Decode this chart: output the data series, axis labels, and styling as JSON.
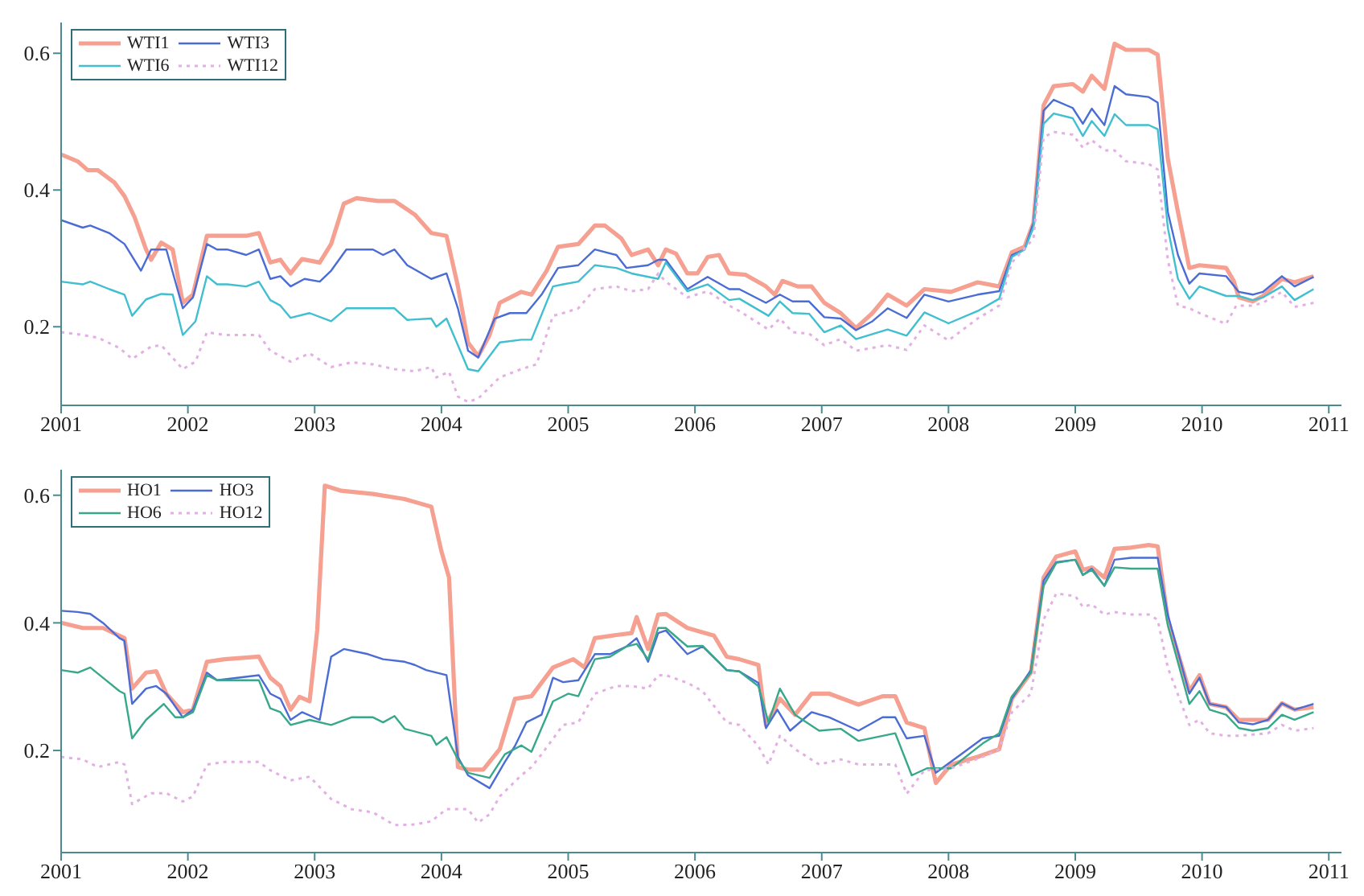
{
  "chart_data": [
    {
      "type": "line",
      "xlim": [
        2001,
        2011.1
      ],
      "xticks": [
        2001,
        2002,
        2003,
        2004,
        2005,
        2006,
        2007,
        2008,
        2009,
        2010,
        2011
      ],
      "ylim": [
        0.085,
        0.645
      ],
      "yticks": [
        0.2,
        0.4,
        0.6
      ],
      "legend": "top left",
      "marker": "none",
      "series": [
        {
          "name": "WTI1",
          "color": "#f5a090",
          "line_style": "solid",
          "x": [
            2001.0,
            2001.13,
            2001.21,
            2001.29,
            2001.42,
            2001.5,
            2001.58,
            2001.67,
            2001.71,
            2001.79,
            2001.88,
            2001.96,
            2002.04,
            2002.15,
            2002.25,
            2002.46,
            2002.56,
            2002.65,
            2002.73,
            2002.81,
            2002.9,
            2003.04,
            2003.13,
            2003.23,
            2003.33,
            2003.5,
            2003.63,
            2003.79,
            2003.92,
            2004.04,
            2004.13,
            2004.21,
            2004.29,
            2004.38,
            2004.46,
            2004.63,
            2004.71,
            2004.83,
            2004.92,
            2005.08,
            2005.21,
            2005.29,
            2005.42,
            2005.5,
            2005.63,
            2005.71,
            2005.77,
            2005.85,
            2005.94,
            2006.02,
            2006.1,
            2006.19,
            2006.27,
            2006.4,
            2006.56,
            2006.63,
            2006.69,
            2006.81,
            2006.92,
            2007.02,
            2007.15,
            2007.27,
            2007.4,
            2007.52,
            2007.67,
            2007.81,
            2008.02,
            2008.23,
            2008.4,
            2008.5,
            2008.6,
            2008.67,
            2008.75,
            2008.83,
            2008.98,
            2009.06,
            2009.13,
            2009.23,
            2009.31,
            2009.4,
            2009.58,
            2009.65,
            2009.73,
            2009.81,
            2009.9,
            2009.98,
            2010.19,
            2010.25,
            2010.29,
            2010.4,
            2010.48,
            2010.63,
            2010.73,
            2010.88
          ],
          "values": [
            0.452,
            0.442,
            0.429,
            0.429,
            0.411,
            0.391,
            0.36,
            0.313,
            0.298,
            0.323,
            0.313,
            0.235,
            0.247,
            0.333,
            0.333,
            0.333,
            0.337,
            0.294,
            0.298,
            0.278,
            0.299,
            0.294,
            0.321,
            0.38,
            0.388,
            0.384,
            0.384,
            0.364,
            0.337,
            0.333,
            0.259,
            0.177,
            0.157,
            0.188,
            0.235,
            0.251,
            0.247,
            0.282,
            0.317,
            0.321,
            0.348,
            0.348,
            0.329,
            0.305,
            0.313,
            0.29,
            0.313,
            0.307,
            0.278,
            0.278,
            0.302,
            0.305,
            0.278,
            0.276,
            0.259,
            0.247,
            0.267,
            0.259,
            0.259,
            0.235,
            0.22,
            0.198,
            0.22,
            0.247,
            0.231,
            0.255,
            0.251,
            0.265,
            0.259,
            0.309,
            0.317,
            0.352,
            0.524,
            0.552,
            0.555,
            0.544,
            0.567,
            0.548,
            0.614,
            0.605,
            0.605,
            0.598,
            0.446,
            0.368,
            0.286,
            0.29,
            0.286,
            0.267,
            0.243,
            0.237,
            0.245,
            0.27,
            0.265,
            0.274
          ]
        },
        {
          "name": "WTI3",
          "color": "#4a6cd4",
          "line_style": "solid",
          "x": [
            2001.0,
            2001.17,
            2001.23,
            2001.38,
            2001.5,
            2001.63,
            2001.71,
            2001.83,
            2001.96,
            2002.04,
            2002.15,
            2002.23,
            2002.31,
            2002.46,
            2002.56,
            2002.65,
            2002.73,
            2002.81,
            2002.92,
            2003.04,
            2003.13,
            2003.25,
            2003.46,
            2003.54,
            2003.63,
            2003.73,
            2003.92,
            2004.04,
            2004.13,
            2004.21,
            2004.29,
            2004.42,
            2004.54,
            2004.67,
            2004.79,
            2004.92,
            2005.08,
            2005.21,
            2005.38,
            2005.46,
            2005.63,
            2005.71,
            2005.77,
            2005.94,
            2006.1,
            2006.27,
            2006.35,
            2006.56,
            2006.67,
            2006.77,
            2006.9,
            2007.02,
            2007.15,
            2007.27,
            2007.4,
            2007.52,
            2007.67,
            2007.81,
            2008.0,
            2008.23,
            2008.4,
            2008.5,
            2008.6,
            2008.67,
            2008.75,
            2008.83,
            2008.98,
            2009.06,
            2009.13,
            2009.23,
            2009.31,
            2009.4,
            2009.58,
            2009.65,
            2009.73,
            2009.81,
            2009.9,
            2009.98,
            2010.19,
            2010.29,
            2010.4,
            2010.48,
            2010.63,
            2010.73,
            2010.88
          ],
          "values": [
            0.356,
            0.345,
            0.348,
            0.337,
            0.321,
            0.282,
            0.313,
            0.313,
            0.227,
            0.243,
            0.321,
            0.313,
            0.313,
            0.305,
            0.313,
            0.27,
            0.274,
            0.259,
            0.27,
            0.266,
            0.282,
            0.313,
            0.313,
            0.305,
            0.313,
            0.29,
            0.27,
            0.278,
            0.227,
            0.165,
            0.155,
            0.212,
            0.22,
            0.22,
            0.247,
            0.286,
            0.29,
            0.313,
            0.305,
            0.286,
            0.29,
            0.298,
            0.298,
            0.255,
            0.273,
            0.255,
            0.255,
            0.235,
            0.247,
            0.237,
            0.237,
            0.214,
            0.212,
            0.195,
            0.208,
            0.227,
            0.213,
            0.247,
            0.237,
            0.247,
            0.252,
            0.305,
            0.313,
            0.352,
            0.516,
            0.532,
            0.52,
            0.497,
            0.519,
            0.495,
            0.552,
            0.54,
            0.536,
            0.528,
            0.368,
            0.305,
            0.263,
            0.278,
            0.274,
            0.251,
            0.247,
            0.251,
            0.274,
            0.259,
            0.273
          ]
        },
        {
          "name": "WTI6",
          "color": "#40bfd0",
          "line_style": "solid",
          "x": [
            2001.0,
            2001.17,
            2001.23,
            2001.38,
            2001.5,
            2001.56,
            2001.67,
            2001.79,
            2001.88,
            2001.96,
            2002.06,
            2002.15,
            2002.23,
            2002.31,
            2002.46,
            2002.56,
            2002.65,
            2002.73,
            2002.81,
            2002.96,
            2003.13,
            2003.25,
            2003.5,
            2003.63,
            2003.73,
            2003.92,
            2003.96,
            2004.04,
            2004.13,
            2004.21,
            2004.29,
            2004.46,
            2004.63,
            2004.71,
            2004.88,
            2004.96,
            2005.08,
            2005.21,
            2005.38,
            2005.5,
            2005.71,
            2005.77,
            2005.94,
            2006.1,
            2006.27,
            2006.35,
            2006.58,
            2006.67,
            2006.77,
            2006.9,
            2007.02,
            2007.15,
            2007.27,
            2007.52,
            2007.67,
            2007.81,
            2008.0,
            2008.23,
            2008.4,
            2008.5,
            2008.6,
            2008.67,
            2008.75,
            2008.83,
            2008.98,
            2009.06,
            2009.13,
            2009.23,
            2009.31,
            2009.4,
            2009.58,
            2009.65,
            2009.73,
            2009.81,
            2009.9,
            2009.98,
            2010.19,
            2010.29,
            2010.4,
            2010.48,
            2010.63,
            2010.73,
            2010.88
          ],
          "values": [
            0.266,
            0.262,
            0.266,
            0.255,
            0.247,
            0.216,
            0.24,
            0.248,
            0.247,
            0.188,
            0.208,
            0.274,
            0.262,
            0.262,
            0.259,
            0.266,
            0.239,
            0.231,
            0.213,
            0.22,
            0.208,
            0.227,
            0.227,
            0.227,
            0.21,
            0.212,
            0.2,
            0.212,
            0.173,
            0.138,
            0.135,
            0.177,
            0.181,
            0.181,
            0.259,
            0.262,
            0.266,
            0.29,
            0.286,
            0.278,
            0.27,
            0.294,
            0.252,
            0.262,
            0.239,
            0.241,
            0.216,
            0.237,
            0.22,
            0.219,
            0.192,
            0.202,
            0.182,
            0.196,
            0.187,
            0.221,
            0.205,
            0.223,
            0.241,
            0.302,
            0.313,
            0.345,
            0.497,
            0.512,
            0.505,
            0.479,
            0.501,
            0.479,
            0.511,
            0.495,
            0.495,
            0.489,
            0.345,
            0.27,
            0.241,
            0.259,
            0.245,
            0.245,
            0.239,
            0.243,
            0.259,
            0.239,
            0.255
          ]
        },
        {
          "name": "WTI12",
          "color": "#e2b0e2",
          "line_style": "dotted",
          "x": [
            2001.0,
            2001.17,
            2001.29,
            2001.46,
            2001.56,
            2001.71,
            2001.79,
            2001.96,
            2002.06,
            2002.15,
            2002.29,
            2002.56,
            2002.65,
            2002.81,
            2002.96,
            2003.13,
            2003.29,
            2003.46,
            2003.63,
            2003.79,
            2003.92,
            2003.96,
            2004.06,
            2004.13,
            2004.21,
            2004.29,
            2004.46,
            2004.63,
            2004.75,
            2004.88,
            2004.96,
            2005.08,
            2005.21,
            2005.38,
            2005.5,
            2005.63,
            2005.71,
            2005.77,
            2005.94,
            2006.1,
            2006.27,
            2006.35,
            2006.58,
            2006.67,
            2006.77,
            2006.9,
            2007.02,
            2007.15,
            2007.27,
            2007.52,
            2007.67,
            2007.81,
            2008.0,
            2008.23,
            2008.4,
            2008.5,
            2008.67,
            2008.75,
            2008.83,
            2008.98,
            2009.06,
            2009.13,
            2009.23,
            2009.31,
            2009.4,
            2009.58,
            2009.65,
            2009.73,
            2009.81,
            2009.9,
            2009.98,
            2010.19,
            2010.27,
            2010.4,
            2010.48,
            2010.63,
            2010.73,
            2010.88
          ],
          "values": [
            0.192,
            0.188,
            0.184,
            0.169,
            0.153,
            0.171,
            0.173,
            0.138,
            0.149,
            0.192,
            0.188,
            0.188,
            0.165,
            0.149,
            0.161,
            0.141,
            0.148,
            0.145,
            0.138,
            0.135,
            0.141,
            0.126,
            0.134,
            0.098,
            0.09,
            0.095,
            0.126,
            0.138,
            0.145,
            0.216,
            0.22,
            0.227,
            0.255,
            0.259,
            0.252,
            0.255,
            0.278,
            0.266,
            0.243,
            0.252,
            0.231,
            0.223,
            0.196,
            0.212,
            0.192,
            0.19,
            0.173,
            0.182,
            0.165,
            0.173,
            0.166,
            0.202,
            0.18,
            0.212,
            0.231,
            0.294,
            0.329,
            0.477,
            0.485,
            0.481,
            0.462,
            0.473,
            0.458,
            0.458,
            0.442,
            0.438,
            0.43,
            0.298,
            0.231,
            0.227,
            0.22,
            0.204,
            0.231,
            0.231,
            0.235,
            0.251,
            0.229,
            0.235
          ]
        }
      ]
    },
    {
      "type": "line",
      "xlim": [
        2001,
        2011.1
      ],
      "xticks": [
        2001,
        2002,
        2003,
        2004,
        2005,
        2006,
        2007,
        2008,
        2009,
        2010,
        2011
      ],
      "ylim": [
        0.04,
        0.64
      ],
      "yticks": [
        0.2,
        0.4,
        0.6
      ],
      "legend": "top left",
      "marker": "none",
      "series": [
        {
          "name": "HO1",
          "color": "#f5a090",
          "line_style": "solid",
          "x": [
            2001.0,
            2001.17,
            2001.33,
            2001.5,
            2001.56,
            2001.67,
            2001.75,
            2001.83,
            2001.96,
            2002.04,
            2002.15,
            2002.29,
            2002.56,
            2002.65,
            2002.73,
            2002.81,
            2002.88,
            2002.96,
            2003.02,
            2003.08,
            2003.21,
            2003.46,
            2003.71,
            2003.92,
            2004.0,
            2004.06,
            2004.13,
            2004.21,
            2004.33,
            2004.46,
            2004.58,
            2004.71,
            2004.88,
            2005.04,
            2005.13,
            2005.21,
            2005.38,
            2005.5,
            2005.54,
            2005.63,
            2005.71,
            2005.77,
            2005.94,
            2006.15,
            2006.25,
            2006.35,
            2006.5,
            2006.56,
            2006.67,
            2006.79,
            2006.92,
            2007.06,
            2007.29,
            2007.48,
            2007.58,
            2007.67,
            2007.81,
            2007.9,
            2008.02,
            2008.23,
            2008.4,
            2008.5,
            2008.65,
            2008.75,
            2008.85,
            2009.0,
            2009.06,
            2009.13,
            2009.23,
            2009.31,
            2009.44,
            2009.58,
            2009.65,
            2009.73,
            2009.9,
            2009.98,
            2010.06,
            2010.19,
            2010.29,
            2010.52,
            2010.63,
            2010.73,
            2010.88
          ],
          "values": [
            0.4,
            0.392,
            0.392,
            0.376,
            0.297,
            0.322,
            0.324,
            0.289,
            0.26,
            0.264,
            0.339,
            0.343,
            0.347,
            0.314,
            0.301,
            0.264,
            0.284,
            0.277,
            0.388,
            0.615,
            0.607,
            0.602,
            0.594,
            0.582,
            0.512,
            0.471,
            0.174,
            0.17,
            0.17,
            0.202,
            0.281,
            0.285,
            0.33,
            0.343,
            0.33,
            0.376,
            0.381,
            0.384,
            0.409,
            0.359,
            0.413,
            0.414,
            0.392,
            0.38,
            0.347,
            0.343,
            0.334,
            0.24,
            0.281,
            0.256,
            0.289,
            0.289,
            0.272,
            0.285,
            0.285,
            0.244,
            0.235,
            0.149,
            0.178,
            0.19,
            0.202,
            0.281,
            0.322,
            0.471,
            0.504,
            0.512,
            0.483,
            0.487,
            0.471,
            0.516,
            0.518,
            0.522,
            0.52,
            0.405,
            0.293,
            0.318,
            0.273,
            0.268,
            0.248,
            0.248,
            0.274,
            0.264,
            0.268
          ]
        },
        {
          "name": "HO3",
          "color": "#4a6cd4",
          "line_style": "solid",
          "x": [
            2001.0,
            2001.13,
            2001.23,
            2001.33,
            2001.46,
            2001.5,
            2001.56,
            2001.67,
            2001.75,
            2001.83,
            2001.96,
            2002.04,
            2002.15,
            2002.23,
            2002.56,
            2002.65,
            2002.73,
            2002.81,
            2002.9,
            2003.04,
            2003.13,
            2003.23,
            2003.42,
            2003.54,
            2003.71,
            2003.79,
            2003.88,
            2004.04,
            2004.13,
            2004.21,
            2004.38,
            2004.5,
            2004.58,
            2004.67,
            2004.79,
            2004.88,
            2004.96,
            2005.08,
            2005.21,
            2005.33,
            2005.46,
            2005.54,
            2005.63,
            2005.71,
            2005.77,
            2005.94,
            2006.06,
            2006.25,
            2006.35,
            2006.5,
            2006.56,
            2006.65,
            2006.75,
            2006.92,
            2007.06,
            2007.29,
            2007.48,
            2007.58,
            2007.67,
            2007.81,
            2007.9,
            2008.1,
            2008.27,
            2008.4,
            2008.5,
            2008.65,
            2008.75,
            2008.85,
            2009.0,
            2009.06,
            2009.13,
            2009.23,
            2009.31,
            2009.44,
            2009.65,
            2009.73,
            2009.9,
            2009.98,
            2010.06,
            2010.19,
            2010.29,
            2010.4,
            2010.52,
            2010.63,
            2010.73,
            2010.88
          ],
          "values": [
            0.419,
            0.417,
            0.414,
            0.4,
            0.376,
            0.372,
            0.273,
            0.297,
            0.301,
            0.289,
            0.252,
            0.264,
            0.322,
            0.31,
            0.318,
            0.289,
            0.281,
            0.248,
            0.26,
            0.248,
            0.347,
            0.359,
            0.351,
            0.343,
            0.339,
            0.334,
            0.326,
            0.318,
            0.19,
            0.161,
            0.141,
            0.182,
            0.207,
            0.244,
            0.256,
            0.314,
            0.307,
            0.31,
            0.351,
            0.351,
            0.363,
            0.376,
            0.339,
            0.384,
            0.388,
            0.351,
            0.363,
            0.326,
            0.324,
            0.306,
            0.235,
            0.264,
            0.231,
            0.26,
            0.252,
            0.231,
            0.252,
            0.252,
            0.219,
            0.223,
            0.165,
            0.194,
            0.219,
            0.223,
            0.281,
            0.326,
            0.466,
            0.495,
            0.499,
            0.475,
            0.485,
            0.458,
            0.499,
            0.502,
            0.502,
            0.413,
            0.289,
            0.314,
            0.273,
            0.268,
            0.244,
            0.241,
            0.248,
            0.274,
            0.264,
            0.273
          ]
        },
        {
          "name": "HO6",
          "color": "#38a88a",
          "line_style": "solid",
          "x": [
            2001.0,
            2001.13,
            2001.23,
            2001.33,
            2001.46,
            2001.5,
            2001.56,
            2001.67,
            2001.81,
            2001.9,
            2001.96,
            2002.04,
            2002.15,
            2002.23,
            2002.56,
            2002.65,
            2002.73,
            2002.81,
            2002.96,
            2003.13,
            2003.29,
            2003.46,
            2003.54,
            2003.63,
            2003.71,
            2003.92,
            2003.96,
            2004.04,
            2004.13,
            2004.21,
            2004.38,
            2004.5,
            2004.63,
            2004.71,
            2004.88,
            2005.0,
            2005.08,
            2005.21,
            2005.33,
            2005.46,
            2005.54,
            2005.63,
            2005.71,
            2005.77,
            2005.94,
            2006.06,
            2006.25,
            2006.35,
            2006.5,
            2006.58,
            2006.67,
            2006.79,
            2006.98,
            2007.15,
            2007.29,
            2007.58,
            2007.71,
            2007.83,
            2008.02,
            2008.27,
            2008.4,
            2008.5,
            2008.65,
            2008.75,
            2008.85,
            2009.0,
            2009.06,
            2009.13,
            2009.23,
            2009.31,
            2009.44,
            2009.65,
            2009.73,
            2009.9,
            2009.98,
            2010.06,
            2010.19,
            2010.29,
            2010.4,
            2010.52,
            2010.63,
            2010.73,
            2010.88
          ],
          "values": [
            0.326,
            0.322,
            0.33,
            0.314,
            0.293,
            0.289,
            0.219,
            0.248,
            0.273,
            0.252,
            0.252,
            0.26,
            0.318,
            0.31,
            0.31,
            0.266,
            0.26,
            0.24,
            0.248,
            0.24,
            0.252,
            0.252,
            0.244,
            0.254,
            0.234,
            0.223,
            0.209,
            0.221,
            0.186,
            0.165,
            0.157,
            0.194,
            0.208,
            0.198,
            0.277,
            0.289,
            0.285,
            0.343,
            0.347,
            0.363,
            0.367,
            0.343,
            0.392,
            0.392,
            0.363,
            0.364,
            0.326,
            0.324,
            0.301,
            0.244,
            0.297,
            0.256,
            0.231,
            0.234,
            0.215,
            0.227,
            0.161,
            0.172,
            0.172,
            0.211,
            0.227,
            0.285,
            0.322,
            0.458,
            0.494,
            0.499,
            0.475,
            0.483,
            0.458,
            0.487,
            0.485,
            0.485,
            0.396,
            0.273,
            0.293,
            0.264,
            0.256,
            0.235,
            0.231,
            0.235,
            0.256,
            0.248,
            0.26
          ]
        },
        {
          "name": "HO12",
          "color": "#e2b0e2",
          "line_style": "dotted",
          "x": [
            2001.0,
            2001.17,
            2001.29,
            2001.46,
            2001.5,
            2001.56,
            2001.71,
            2001.83,
            2001.96,
            2002.04,
            2002.15,
            2002.29,
            2002.56,
            2002.65,
            2002.81,
            2002.96,
            2003.13,
            2003.29,
            2003.46,
            2003.63,
            2003.79,
            2003.92,
            2004.04,
            2004.21,
            2004.29,
            2004.38,
            2004.46,
            2004.63,
            2004.71,
            2004.79,
            2004.96,
            2005.08,
            2005.21,
            2005.38,
            2005.5,
            2005.63,
            2005.71,
            2005.77,
            2005.94,
            2006.06,
            2006.25,
            2006.35,
            2006.5,
            2006.58,
            2006.67,
            2006.79,
            2006.98,
            2007.15,
            2007.29,
            2007.58,
            2007.67,
            2007.81,
            2008.02,
            2008.27,
            2008.4,
            2008.5,
            2008.65,
            2008.75,
            2008.85,
            2009.0,
            2009.06,
            2009.13,
            2009.23,
            2009.31,
            2009.44,
            2009.58,
            2009.65,
            2009.73,
            2009.9,
            2009.98,
            2010.06,
            2010.19,
            2010.29,
            2010.52,
            2010.63,
            2010.73,
            2010.88
          ],
          "values": [
            0.19,
            0.186,
            0.174,
            0.182,
            0.178,
            0.116,
            0.133,
            0.133,
            0.12,
            0.128,
            0.178,
            0.182,
            0.182,
            0.169,
            0.153,
            0.159,
            0.124,
            0.108,
            0.103,
            0.083,
            0.084,
            0.089,
            0.108,
            0.108,
            0.087,
            0.1,
            0.128,
            0.161,
            0.174,
            0.194,
            0.24,
            0.244,
            0.289,
            0.301,
            0.301,
            0.297,
            0.318,
            0.318,
            0.306,
            0.293,
            0.244,
            0.24,
            0.207,
            0.178,
            0.223,
            0.202,
            0.178,
            0.186,
            0.178,
            0.178,
            0.132,
            0.169,
            0.172,
            0.19,
            0.202,
            0.26,
            0.289,
            0.405,
            0.446,
            0.442,
            0.425,
            0.429,
            0.413,
            0.417,
            0.413,
            0.413,
            0.405,
            0.33,
            0.24,
            0.248,
            0.227,
            0.223,
            0.223,
            0.227,
            0.24,
            0.231,
            0.235
          ]
        }
      ]
    }
  ]
}
